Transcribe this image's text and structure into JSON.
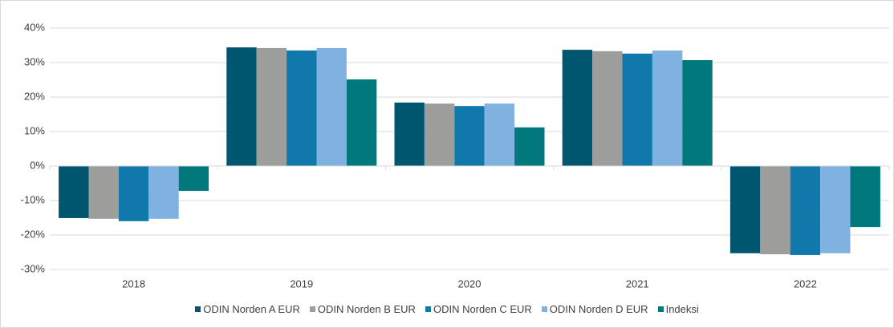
{
  "chart_data": {
    "type": "bar",
    "categories": [
      "2018",
      "2019",
      "2020",
      "2021",
      "2022"
    ],
    "series": [
      {
        "name": "ODIN Norden A EUR",
        "color": "#00566e",
        "values": [
          -15.1,
          34.4,
          18.4,
          33.7,
          -25.3
        ]
      },
      {
        "name": "ODIN Norden B EUR",
        "color": "#9d9d9c",
        "values": [
          -15.3,
          34.2,
          18.1,
          33.3,
          -25.6
        ]
      },
      {
        "name": "ODIN Norden C EUR",
        "color": "#1078aa",
        "values": [
          -16.0,
          33.5,
          17.4,
          32.6,
          -25.8
        ]
      },
      {
        "name": "ODIN Norden D EUR",
        "color": "#7fb2e0",
        "values": [
          -15.3,
          34.2,
          18.1,
          33.5,
          -25.3
        ]
      },
      {
        "name": "Indeksi",
        "color": "#00787c",
        "values": [
          -7.2,
          25.1,
          11.2,
          30.7,
          -17.7
        ]
      }
    ],
    "ylim": [
      -30,
      40
    ],
    "yticks": [
      {
        "value": -30,
        "label": "-30%"
      },
      {
        "value": -20,
        "label": "-20%"
      },
      {
        "value": -10,
        "label": "-10%"
      },
      {
        "value": 0,
        "label": "0%"
      },
      {
        "value": 10,
        "label": "10%"
      },
      {
        "value": 20,
        "label": "20%"
      },
      {
        "value": 30,
        "label": "30%"
      },
      {
        "value": 40,
        "label": "40%"
      }
    ],
    "grid": true,
    "legend": "bottom"
  }
}
